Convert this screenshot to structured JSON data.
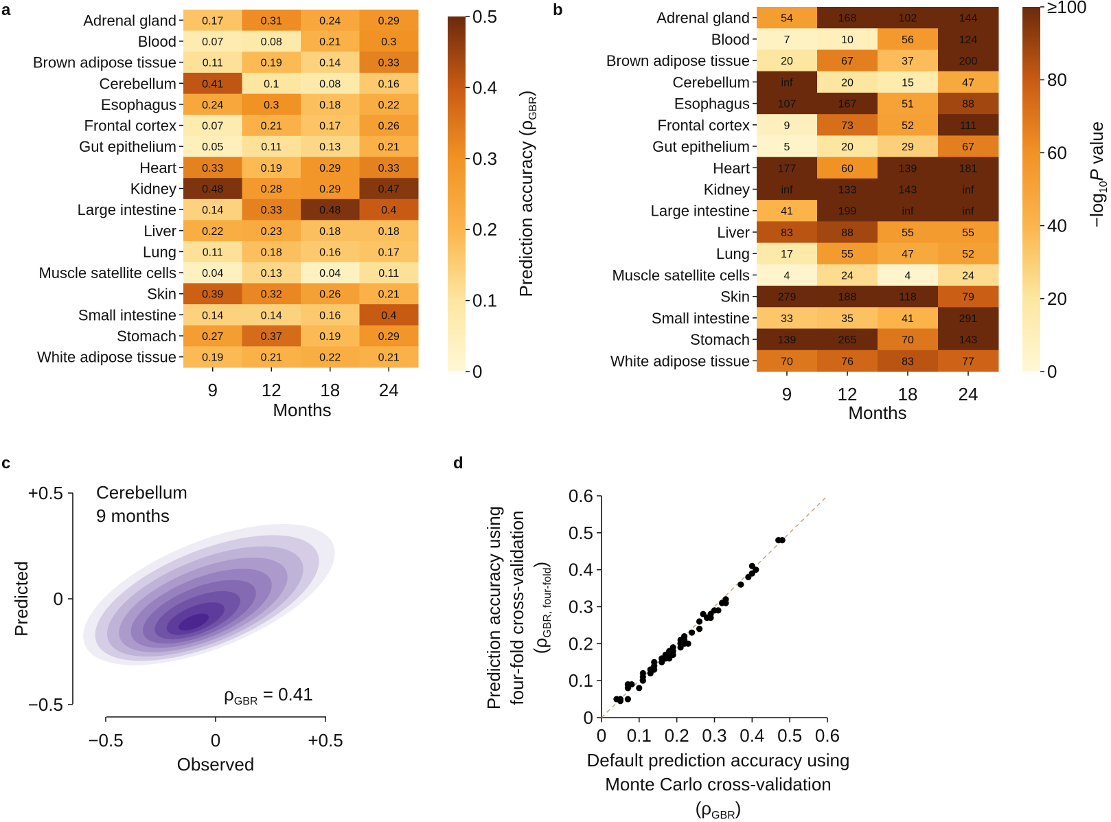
{
  "panels": {
    "a": {
      "letter": "a",
      "chart_data": {
        "type": "heatmap",
        "rows": [
          "Adrenal gland",
          "Blood",
          "Brown adipose tissue",
          "Cerebellum",
          "Esophagus",
          "Frontal cortex",
          "Gut epithelium",
          "Heart",
          "Kidney",
          "Large intestine",
          "Liver",
          "Lung",
          "Muscle satellite cells",
          "Skin",
          "Small intestine",
          "Stomach",
          "White adipose tissue"
        ],
        "columns": [
          "9",
          "12",
          "18",
          "24"
        ],
        "values": [
          [
            0.17,
            0.31,
            0.24,
            0.29
          ],
          [
            0.07,
            0.08,
            0.21,
            0.3
          ],
          [
            0.11,
            0.19,
            0.14,
            0.33
          ],
          [
            0.41,
            0.1,
            0.08,
            0.16
          ],
          [
            0.24,
            0.3,
            0.18,
            0.22
          ],
          [
            0.07,
            0.21,
            0.17,
            0.26
          ],
          [
            0.05,
            0.11,
            0.13,
            0.21
          ],
          [
            0.33,
            0.19,
            0.29,
            0.33
          ],
          [
            0.48,
            0.28,
            0.29,
            0.47
          ],
          [
            0.14,
            0.33,
            0.48,
            0.4
          ],
          [
            0.22,
            0.23,
            0.18,
            0.18
          ],
          [
            0.11,
            0.18,
            0.16,
            0.17
          ],
          [
            0.04,
            0.13,
            0.04,
            0.11
          ],
          [
            0.39,
            0.32,
            0.26,
            0.21
          ],
          [
            0.14,
            0.14,
            0.16,
            0.4
          ],
          [
            0.27,
            0.37,
            0.19,
            0.29
          ],
          [
            0.19,
            0.21,
            0.22,
            0.21
          ]
        ],
        "cell_labels": [
          [
            "0.17",
            "0.31",
            "0.24",
            "0.29"
          ],
          [
            "0.07",
            "0.08",
            "0.21",
            "0.3"
          ],
          [
            "0.11",
            "0.19",
            "0.14",
            "0.33"
          ],
          [
            "0.41",
            "0.1",
            "0.08",
            "0.16"
          ],
          [
            "0.24",
            "0.3",
            "0.18",
            "0.22"
          ],
          [
            "0.07",
            "0.21",
            "0.17",
            "0.26"
          ],
          [
            "0.05",
            "0.11",
            "0.13",
            "0.21"
          ],
          [
            "0.33",
            "0.19",
            "0.29",
            "0.33"
          ],
          [
            "0.48",
            "0.28",
            "0.29",
            "0.47"
          ],
          [
            "0.14",
            "0.33",
            "0.48",
            "0.4"
          ],
          [
            "0.22",
            "0.23",
            "0.18",
            "0.18"
          ],
          [
            "0.11",
            "0.18",
            "0.16",
            "0.17"
          ],
          [
            "0.04",
            "0.13",
            "0.04",
            "0.11"
          ],
          [
            "0.39",
            "0.32",
            "0.26",
            "0.21"
          ],
          [
            "0.14",
            "0.14",
            "0.16",
            "0.4"
          ],
          [
            "0.27",
            "0.37",
            "0.19",
            "0.29"
          ],
          [
            "0.19",
            "0.21",
            "0.22",
            "0.21"
          ]
        ],
        "xlabel": "Months",
        "colorbar": {
          "range": [
            0,
            0.5
          ],
          "ticks": [
            "0",
            "0.1",
            "0.2",
            "0.3",
            "0.4",
            "0.5"
          ],
          "label_main": "Prediction accuracy (ρ",
          "label_sub": "GBR",
          "label_end": ")"
        }
      }
    },
    "b": {
      "letter": "b",
      "chart_data": {
        "type": "heatmap",
        "rows": [
          "Adrenal gland",
          "Blood",
          "Brown adipose tissue",
          "Cerebellum",
          "Esophagus",
          "Frontal cortex",
          "Gut epithelium",
          "Heart",
          "Kidney",
          "Large intestine",
          "Liver",
          "Lung",
          "Muscle satellite cells",
          "Skin",
          "Small intestine",
          "Stomach",
          "White adipose tissue"
        ],
        "columns": [
          "9",
          "12",
          "18",
          "24"
        ],
        "values": [
          [
            54,
            168,
            102,
            144
          ],
          [
            7,
            10,
            56,
            124
          ],
          [
            20,
            67,
            37,
            200
          ],
          [
            1000,
            20,
            15,
            47
          ],
          [
            107,
            167,
            51,
            88
          ],
          [
            9,
            73,
            52,
            111
          ],
          [
            5,
            20,
            29,
            67
          ],
          [
            177,
            60,
            139,
            181
          ],
          [
            1000,
            133,
            143,
            1000
          ],
          [
            41,
            199,
            1000,
            1000
          ],
          [
            83,
            88,
            55,
            55
          ],
          [
            17,
            55,
            47,
            52
          ],
          [
            4,
            24,
            4,
            24
          ],
          [
            279,
            188,
            118,
            79
          ],
          [
            33,
            35,
            41,
            291
          ],
          [
            139,
            265,
            70,
            143
          ],
          [
            70,
            76,
            83,
            77
          ]
        ],
        "cell_labels": [
          [
            "54",
            "168",
            "102",
            "144"
          ],
          [
            "7",
            "10",
            "56",
            "124"
          ],
          [
            "20",
            "67",
            "37",
            "200"
          ],
          [
            "inf",
            "20",
            "15",
            "47"
          ],
          [
            "107",
            "167",
            "51",
            "88"
          ],
          [
            "9",
            "73",
            "52",
            "111"
          ],
          [
            "5",
            "20",
            "29",
            "67"
          ],
          [
            "177",
            "60",
            "139",
            "181"
          ],
          [
            "inf",
            "133",
            "143",
            "inf"
          ],
          [
            "41",
            "199",
            "inf",
            "inf"
          ],
          [
            "83",
            "88",
            "55",
            "55"
          ],
          [
            "17",
            "55",
            "47",
            "52"
          ],
          [
            "4",
            "24",
            "4",
            "24"
          ],
          [
            "279",
            "188",
            "118",
            "79"
          ],
          [
            "33",
            "35",
            "41",
            "291"
          ],
          [
            "139",
            "265",
            "70",
            "143"
          ],
          [
            "70",
            "76",
            "83",
            "77"
          ]
        ],
        "xlabel": "Months",
        "colorbar": {
          "range": [
            0,
            100
          ],
          "ticks": [
            "0",
            "20",
            "40",
            "60",
            "80",
            "≥100"
          ],
          "label_pre": "−log",
          "label_sub": "10",
          "label_italic": "P",
          "label_post": " value"
        }
      }
    },
    "c": {
      "letter": "c",
      "chart_data": {
        "type": "density",
        "title_line1": "Cerebellum",
        "title_line2": "9 months",
        "xlabel": "Observed",
        "ylabel": "Predicted",
        "xlim": [
          -0.5,
          0.5
        ],
        "ylim": [
          -0.5,
          0.5
        ],
        "xticks": [
          "−0.5",
          "0",
          "+0.5"
        ],
        "yticks": [
          "+0.5",
          "0",
          "−0.5"
        ],
        "annotation_main": "ρ",
        "annotation_sub": "GBR",
        "annotation_value": " = 0.41",
        "levels": 9,
        "color_light": "#eeecf4",
        "color_dark": "#4b2590"
      }
    },
    "d": {
      "letter": "d",
      "chart_data": {
        "type": "scatter",
        "xlim": [
          0,
          0.6
        ],
        "ylim": [
          0,
          0.6
        ],
        "xticks": [
          "0",
          "0.1",
          "0.2",
          "0.3",
          "0.4",
          "0.5",
          "0.6"
        ],
        "yticks": [
          "0",
          "0.1",
          "0.2",
          "0.3",
          "0.4",
          "0.5",
          "0.6"
        ],
        "xlabel_line1": "Default prediction accuracy using",
        "xlabel_line2": "Monte Carlo cross-validation",
        "xlabel_line3_main": "(ρ",
        "xlabel_line3_sub": "GBR",
        "xlabel_line3_end": ")",
        "ylabel_line1": "Prediction accuracy using",
        "ylabel_line2": "four-fold cross-validation",
        "ylabel_line3_main": "(ρ",
        "ylabel_line3_sub": "GBR, four-fold",
        "ylabel_line3_end": ")",
        "diagonal_color": "#c8a98c",
        "points": [
          [
            0.04,
            0.05
          ],
          [
            0.05,
            0.045
          ],
          [
            0.05,
            0.05
          ],
          [
            0.07,
            0.05
          ],
          [
            0.07,
            0.08
          ],
          [
            0.08,
            0.09
          ],
          [
            0.07,
            0.09
          ],
          [
            0.1,
            0.08
          ],
          [
            0.11,
            0.1
          ],
          [
            0.11,
            0.11
          ],
          [
            0.11,
            0.12
          ],
          [
            0.13,
            0.12
          ],
          [
            0.13,
            0.13
          ],
          [
            0.14,
            0.13
          ],
          [
            0.14,
            0.14
          ],
          [
            0.14,
            0.15
          ],
          [
            0.16,
            0.15
          ],
          [
            0.16,
            0.16
          ],
          [
            0.17,
            0.16
          ],
          [
            0.17,
            0.17
          ],
          [
            0.18,
            0.16
          ],
          [
            0.18,
            0.17
          ],
          [
            0.18,
            0.18
          ],
          [
            0.19,
            0.17
          ],
          [
            0.19,
            0.19
          ],
          [
            0.19,
            0.18
          ],
          [
            0.21,
            0.19
          ],
          [
            0.21,
            0.2
          ],
          [
            0.21,
            0.21
          ],
          [
            0.22,
            0.2
          ],
          [
            0.22,
            0.21
          ],
          [
            0.22,
            0.22
          ],
          [
            0.23,
            0.2
          ],
          [
            0.24,
            0.23
          ],
          [
            0.26,
            0.24
          ],
          [
            0.26,
            0.26
          ],
          [
            0.27,
            0.28
          ],
          [
            0.28,
            0.27
          ],
          [
            0.29,
            0.28
          ],
          [
            0.29,
            0.27
          ],
          [
            0.3,
            0.29
          ],
          [
            0.31,
            0.29
          ],
          [
            0.32,
            0.31
          ],
          [
            0.33,
            0.32
          ],
          [
            0.33,
            0.31
          ],
          [
            0.37,
            0.36
          ],
          [
            0.39,
            0.38
          ],
          [
            0.4,
            0.39
          ],
          [
            0.41,
            0.4
          ],
          [
            0.4,
            0.41
          ],
          [
            0.47,
            0.48
          ],
          [
            0.48,
            0.48
          ]
        ]
      }
    }
  },
  "colors": {
    "heat_low": "#fff8d6",
    "heat_high": "#6b2a0c",
    "text_dark": "#111111",
    "text_light": "#ffffff"
  }
}
